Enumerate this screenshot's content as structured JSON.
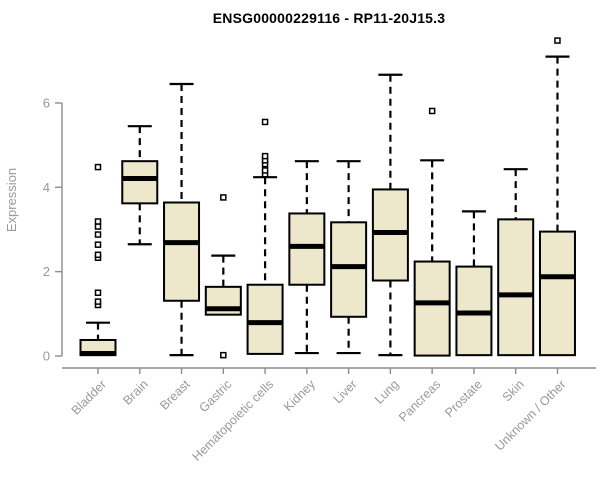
{
  "chart_data": {
    "type": "boxplot",
    "title": "ENSG00000229116 - RP11-20J15.3",
    "ylabel": "Expression",
    "xlabel": "",
    "yticks": [
      0,
      2,
      4,
      6
    ],
    "ylim": [
      0,
      7.7
    ],
    "grid": false,
    "legend": "none",
    "box_fill": "#ede8cc",
    "box_stroke": "#000000",
    "axis_color": "#8c8c8c",
    "label_color": "#999999",
    "categories": [
      "Bladder",
      "Brain",
      "Breast",
      "Gastric",
      "Hematopoietic cells",
      "Kidney",
      "Liver",
      "Lung",
      "Pancreas",
      "Prostate",
      "Skin",
      "Unknown / Other"
    ],
    "boxes": [
      {
        "category": "Bladder",
        "lo": 0.02,
        "q1": 0.02,
        "median": 0.06,
        "q3": 0.38,
        "hi": 0.79,
        "outliers": [
          1.21,
          1.29,
          1.5,
          2.33,
          2.4,
          2.64,
          2.88,
          3.07,
          3.19,
          4.48
        ]
      },
      {
        "category": "Brain",
        "lo": 2.65,
        "q1": 3.62,
        "median": 4.21,
        "q3": 4.62,
        "hi": 5.45,
        "outliers": []
      },
      {
        "category": "Breast",
        "lo": 0.02,
        "q1": 1.31,
        "median": 2.69,
        "q3": 3.64,
        "hi": 6.45,
        "outliers": []
      },
      {
        "category": "Gastric",
        "lo": 0.98,
        "q1": 0.98,
        "median": 1.12,
        "q3": 1.64,
        "hi": 2.38,
        "outliers": [
          0.02,
          3.76
        ]
      },
      {
        "category": "Hematopoietic cells",
        "lo": 0.05,
        "q1": 0.05,
        "median": 0.79,
        "q3": 1.69,
        "hi": 4.24,
        "outliers": [
          4.31,
          4.4,
          4.55,
          4.64,
          4.74,
          5.55
        ]
      },
      {
        "category": "Kidney",
        "lo": 0.07,
        "q1": 1.69,
        "median": 2.6,
        "q3": 3.38,
        "hi": 4.62,
        "outliers": []
      },
      {
        "category": "Liver",
        "lo": 0.07,
        "q1": 0.93,
        "median": 2.12,
        "q3": 3.17,
        "hi": 4.62,
        "outliers": []
      },
      {
        "category": "Lung",
        "lo": 0.02,
        "q1": 1.79,
        "median": 2.93,
        "q3": 3.95,
        "hi": 6.67,
        "outliers": []
      },
      {
        "category": "Pancreas",
        "lo": 0.01,
        "q1": 0.01,
        "median": 1.26,
        "q3": 2.24,
        "hi": 4.64,
        "outliers": [
          5.81
        ]
      },
      {
        "category": "Prostate",
        "lo": 0.02,
        "q1": 0.02,
        "median": 1.02,
        "q3": 2.12,
        "hi": 3.43,
        "outliers": []
      },
      {
        "category": "Skin",
        "lo": 0.02,
        "q1": 0.02,
        "median": 1.45,
        "q3": 3.24,
        "hi": 4.43,
        "outliers": []
      },
      {
        "category": "Unknown / Other",
        "lo": 0.02,
        "q1": 0.02,
        "median": 1.88,
        "q3": 2.95,
        "hi": 7.1,
        "outliers": [
          7.48
        ]
      }
    ]
  }
}
